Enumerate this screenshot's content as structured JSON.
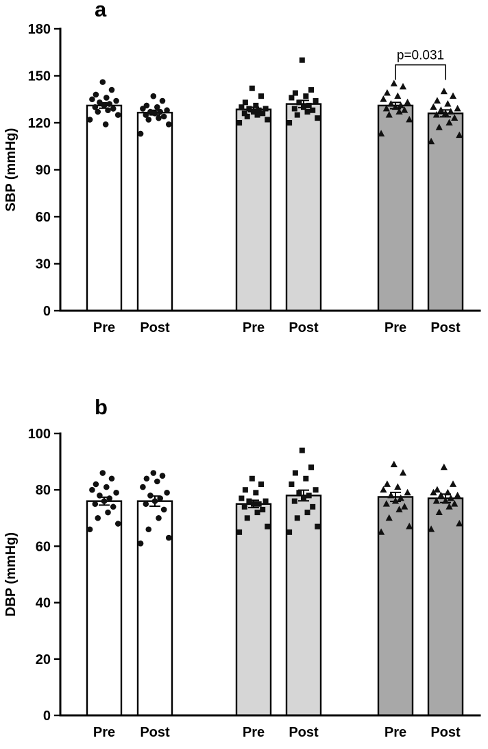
{
  "chart_data": [
    {
      "type": "bar",
      "panel_label": "a",
      "ylabel": "SBP (mmHg)",
      "ylim": [
        0,
        180
      ],
      "yticks": [
        0,
        30,
        60,
        90,
        120,
        150,
        180
      ],
      "x_tick_labels": [
        "Pre",
        "Post",
        "Pre",
        "Post",
        "Pre",
        "Post"
      ],
      "grid": false,
      "legend_position": "none",
      "groups": [
        {
          "name": "group-1",
          "marker": "circle",
          "fill": "#ffffff"
        },
        {
          "name": "group-2",
          "marker": "square",
          "fill": "#d6d6d6"
        },
        {
          "name": "group-3",
          "marker": "triangle",
          "fill": "#a8a8a8"
        }
      ],
      "bars": [
        {
          "group": 0,
          "label": "Pre",
          "mean": 131,
          "sem": 1.7,
          "points": [
            146,
            141,
            138,
            136,
            135,
            134,
            133,
            132,
            131,
            130,
            129,
            128,
            127,
            125,
            122,
            119
          ]
        },
        {
          "group": 0,
          "label": "Post",
          "mean": 126.5,
          "sem": 1.5,
          "points": [
            137,
            134,
            131,
            130,
            129,
            128,
            127,
            127,
            126,
            125,
            124,
            123,
            122,
            119,
            113
          ]
        },
        {
          "group": 1,
          "label": "Pre",
          "mean": 128.5,
          "sem": 1.4,
          "points": [
            142,
            137,
            133,
            131,
            130,
            129,
            129,
            128,
            127,
            126,
            126,
            125,
            124,
            122,
            120
          ]
        },
        {
          "group": 1,
          "label": "Post",
          "mean": 132,
          "sem": 2.3,
          "points": [
            160,
            141,
            139,
            137,
            136,
            134,
            133,
            131,
            130,
            129,
            128,
            127,
            125,
            123,
            120
          ]
        },
        {
          "group": 2,
          "label": "Pre",
          "mean": 131,
          "sem": 2.0,
          "points": [
            145,
            143,
            139,
            137,
            135,
            133,
            132,
            131,
            130,
            129,
            128,
            127,
            125,
            122,
            113
          ]
        },
        {
          "group": 2,
          "label": "Post",
          "mean": 126,
          "sem": 2.2,
          "points": [
            140,
            137,
            134,
            132,
            130,
            129,
            128,
            127,
            126,
            125,
            123,
            120,
            117,
            112,
            108
          ]
        }
      ],
      "significance": {
        "text": "p=0.031",
        "bar_from": 4,
        "bar_to": 5,
        "bracket_y": 157
      }
    },
    {
      "type": "bar",
      "panel_label": "b",
      "ylabel": "DBP (mmHg)",
      "ylim": [
        0,
        100
      ],
      "yticks": [
        0,
        20,
        40,
        60,
        80,
        100
      ],
      "x_tick_labels": [
        "Pre",
        "Post",
        "Pre",
        "Post",
        "Pre",
        "Post"
      ],
      "grid": false,
      "legend_position": "none",
      "groups": [
        {
          "name": "group-1",
          "marker": "circle",
          "fill": "#ffffff"
        },
        {
          "name": "group-2",
          "marker": "square",
          "fill": "#d6d6d6"
        },
        {
          "name": "group-3",
          "marker": "triangle",
          "fill": "#a8a8a8"
        }
      ],
      "bars": [
        {
          "group": 0,
          "label": "Pre",
          "mean": 76,
          "sem": 1.4,
          "points": [
            86,
            84,
            82,
            81,
            80,
            79,
            78,
            77,
            76,
            75,
            74,
            72,
            70,
            68,
            66
          ]
        },
        {
          "group": 0,
          "label": "Post",
          "mean": 76,
          "sem": 1.8,
          "points": [
            86,
            85,
            84,
            83,
            81,
            79,
            78,
            77,
            76,
            75,
            73,
            70,
            66,
            63,
            61
          ]
        },
        {
          "group": 1,
          "label": "Pre",
          "mean": 75,
          "sem": 1.3,
          "points": [
            84,
            82,
            80,
            79,
            77,
            76,
            76,
            75,
            75,
            74,
            73,
            72,
            70,
            67,
            65
          ]
        },
        {
          "group": 1,
          "label": "Post",
          "mean": 78,
          "sem": 1.9,
          "points": [
            94,
            88,
            86,
            84,
            82,
            80,
            79,
            78,
            77,
            76,
            74,
            72,
            70,
            67,
            65
          ]
        },
        {
          "group": 2,
          "label": "Pre",
          "mean": 77.5,
          "sem": 1.6,
          "points": [
            89,
            86,
            82,
            81,
            80,
            79,
            78,
            77,
            76,
            75,
            74,
            73,
            70,
            67,
            65
          ]
        },
        {
          "group": 2,
          "label": "Post",
          "mean": 77,
          "sem": 1.5,
          "points": [
            88,
            82,
            80,
            79,
            79,
            78,
            78,
            77,
            76,
            76,
            75,
            74,
            72,
            68,
            66
          ]
        }
      ],
      "significance": null
    }
  ]
}
